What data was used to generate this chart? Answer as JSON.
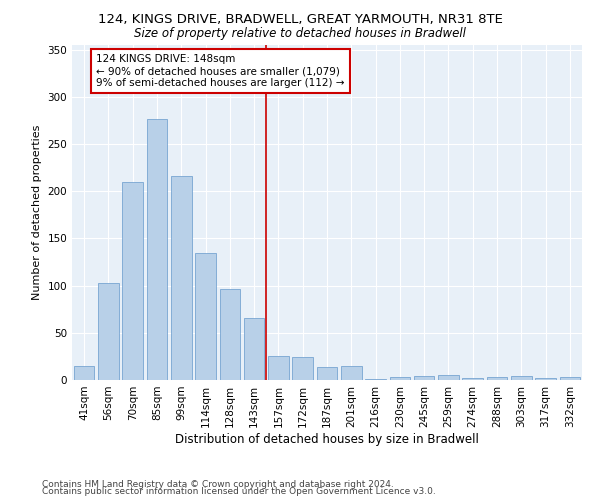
{
  "title1": "124, KINGS DRIVE, BRADWELL, GREAT YARMOUTH, NR31 8TE",
  "title2": "Size of property relative to detached houses in Bradwell",
  "xlabel": "Distribution of detached houses by size in Bradwell",
  "ylabel": "Number of detached properties",
  "bar_labels": [
    "41sqm",
    "56sqm",
    "70sqm",
    "85sqm",
    "99sqm",
    "114sqm",
    "128sqm",
    "143sqm",
    "157sqm",
    "172sqm",
    "187sqm",
    "201sqm",
    "216sqm",
    "230sqm",
    "245sqm",
    "259sqm",
    "274sqm",
    "288sqm",
    "303sqm",
    "317sqm",
    "332sqm"
  ],
  "bar_values": [
    15,
    103,
    210,
    277,
    216,
    135,
    96,
    66,
    25,
    24,
    14,
    15,
    1,
    3,
    4,
    5,
    2,
    3,
    4,
    2,
    3
  ],
  "bar_color": "#b8d0e8",
  "bar_edge_color": "#6699cc",
  "background_color": "#e8f0f8",
  "grid_color": "#ffffff",
  "vline_x": 7.5,
  "vline_color": "#cc0000",
  "annotation_text": "124 KINGS DRIVE: 148sqm\n← 90% of detached houses are smaller (1,079)\n9% of semi-detached houses are larger (112) →",
  "annotation_box_color": "#ffffff",
  "annotation_box_edge": "#cc0000",
  "footer1": "Contains HM Land Registry data © Crown copyright and database right 2024.",
  "footer2": "Contains public sector information licensed under the Open Government Licence v3.0.",
  "ylim": [
    0,
    355
  ],
  "yticks": [
    0,
    50,
    100,
    150,
    200,
    250,
    300,
    350
  ],
  "title1_fontsize": 9.5,
  "title2_fontsize": 8.5,
  "xlabel_fontsize": 8.5,
  "ylabel_fontsize": 8,
  "tick_fontsize": 7.5,
  "annotation_fontsize": 7.5,
  "footer_fontsize": 6.5
}
